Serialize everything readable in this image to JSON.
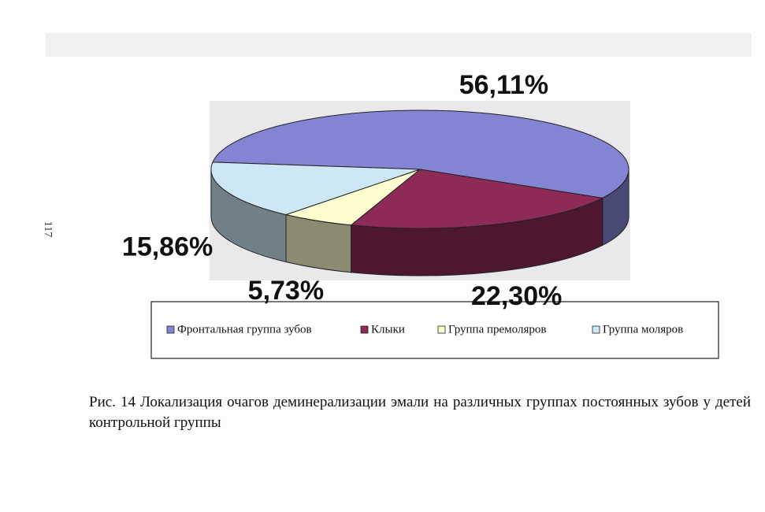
{
  "page_number": "117",
  "chart_data": {
    "type": "pie",
    "categories": [
      "Фронтальная группа зубов",
      "Клыки",
      "Группа премоляров",
      "Группа моляров"
    ],
    "values": [
      56.11,
      22.3,
      5.73,
      15.86
    ],
    "value_labels": [
      "56,11%",
      "22,30%",
      "5,73%",
      "15,86%"
    ],
    "colors": [
      "#8484d4",
      "#8e2a58",
      "#fdfdd0",
      "#cde8f4"
    ],
    "legend": "bottom"
  },
  "caption": "Рис. 14 Локализация очагов деминерализации эмали на различных группах постоянных зубов у детей контрольной группы"
}
